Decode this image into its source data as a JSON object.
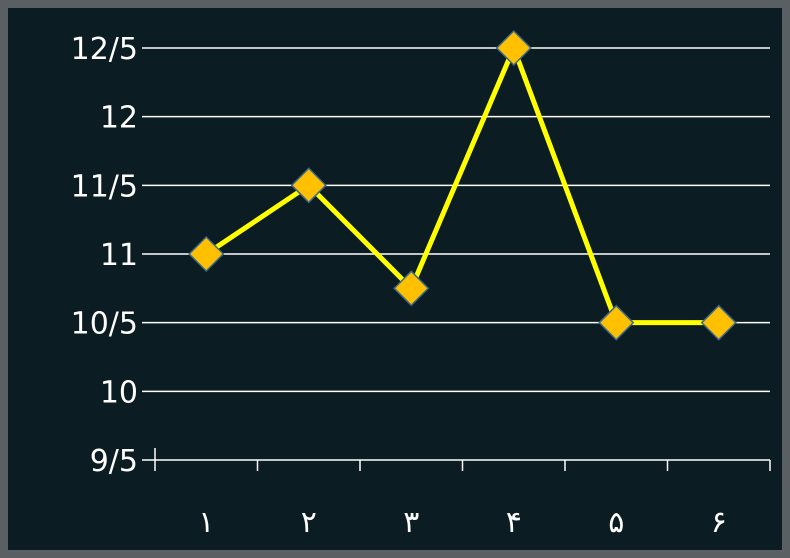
{
  "chart_data": {
    "type": "line",
    "categories": [
      "۱",
      "۲",
      "۳",
      "۴",
      "۵",
      "۶"
    ],
    "series": [
      {
        "values": [
          11,
          11.5,
          10.75,
          12.5,
          10.5,
          10.5
        ]
      }
    ],
    "y_ticks": [
      {
        "value": 9.5,
        "label": "9/5"
      },
      {
        "value": 10,
        "label": "10"
      },
      {
        "value": 10.5,
        "label": "10/5"
      },
      {
        "value": 11,
        "label": "11"
      },
      {
        "value": 11.5,
        "label": "11/5"
      },
      {
        "value": 12,
        "label": "12"
      },
      {
        "value": 12.5,
        "label": "12/5"
      }
    ],
    "ylim": [
      9.5,
      12.5
    ],
    "grid": true,
    "line_color": "#ffff00",
    "marker_color": "#ffc000",
    "marker_shape": "diamond",
    "background_color": "#0b1c22",
    "frame_color": "#5a5f63"
  }
}
